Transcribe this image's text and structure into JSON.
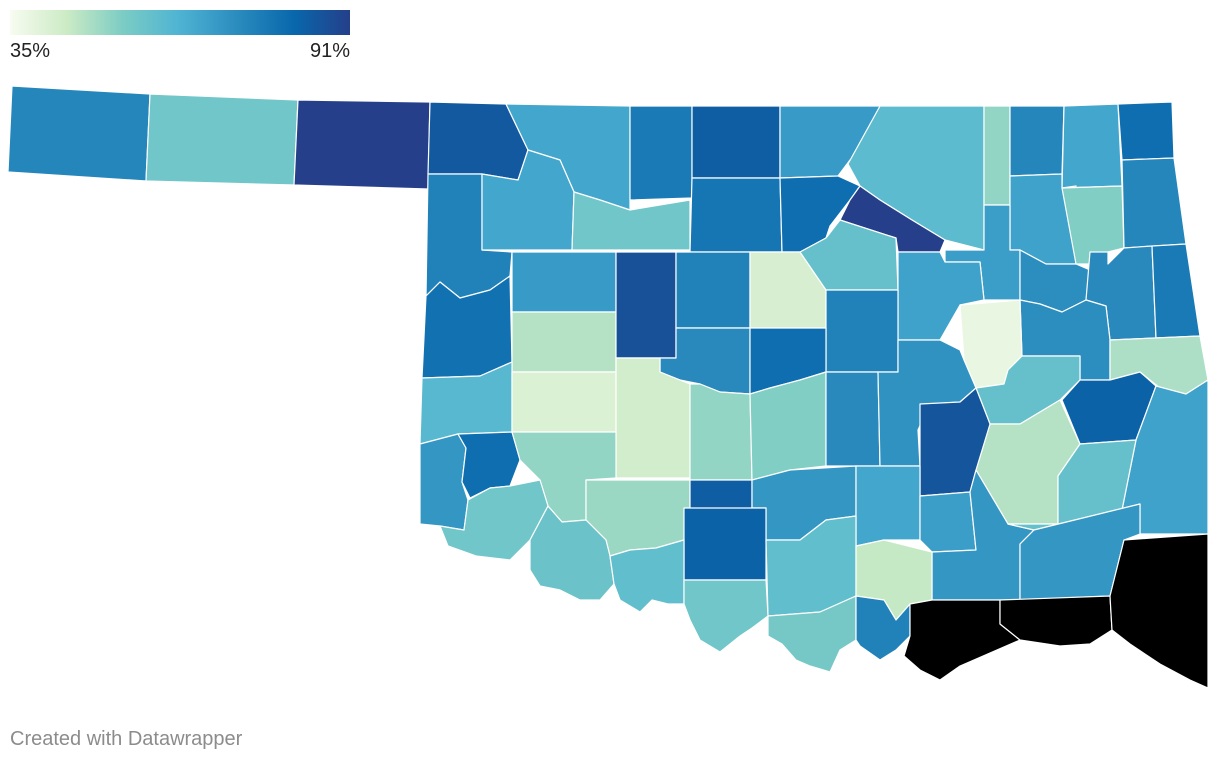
{
  "legend": {
    "min_label": "35%",
    "max_label": "91%",
    "min_value": 35,
    "max_value": 91,
    "gradient_stops": [
      "#f7fcf0",
      "#ccebc5",
      "#7bccc4",
      "#4eb3d3",
      "#2b8cbe",
      "#0868ac",
      "#253f8a"
    ]
  },
  "map": {
    "region": "Oklahoma",
    "unit": "counties",
    "stroke_color": "#ffffff",
    "county_values": [
      74,
      56,
      91,
      85,
      66,
      77,
      84,
      69,
      60,
      51,
      74,
      66,
      80,
      75,
      66,
      56,
      78,
      80,
      91,
      67,
      53,
      68,
      74,
      79,
      69,
      47,
      87,
      75,
      42,
      58,
      67,
      72,
      73,
      77,
      75,
      73,
      80,
      72,
      38,
      48,
      61,
      41,
      43,
      51,
      53,
      73,
      71,
      58,
      83,
      67,
      47,
      86,
      70,
      80,
      51,
      56,
      50,
      57,
      84,
      70,
      66,
      83,
      68,
      70,
      58,
      70,
      59,
      59,
      56,
      55,
      45,
      75
    ]
  },
  "footer": {
    "credit": "Created with Datawrapper"
  }
}
